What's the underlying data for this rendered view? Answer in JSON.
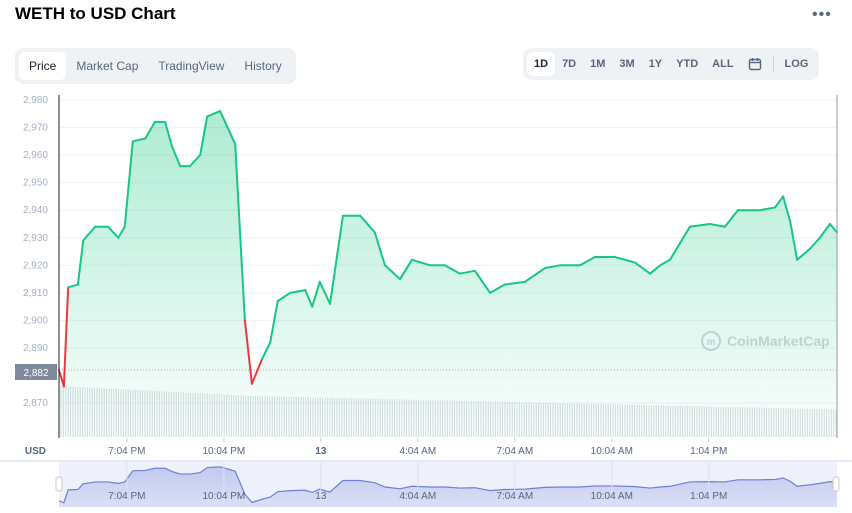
{
  "header": {
    "title": "WETH to USD Chart",
    "more_icon": "ellipsis-icon"
  },
  "tabs": [
    {
      "label": "Price",
      "active": true
    },
    {
      "label": "Market Cap"
    },
    {
      "label": "TradingView"
    },
    {
      "label": "History"
    }
  ],
  "ranges": [
    {
      "label": "1D",
      "active": true
    },
    {
      "label": "7D"
    },
    {
      "label": "1M"
    },
    {
      "label": "3M"
    },
    {
      "label": "1Y"
    },
    {
      "label": "YTD"
    },
    {
      "label": "ALL"
    }
  ],
  "calendar_icon": "calendar-icon",
  "log_label": "LOG",
  "watermark": "CoinMarketCap",
  "colors": {
    "up": "#16c784",
    "down": "#ea3943",
    "navigator": "#6f7fd6"
  },
  "chart_data": {
    "type": "area",
    "ylabel": "USD",
    "ylim": [
      2865,
      2981
    ],
    "yticks": [
      "2,980",
      "2,970",
      "2,960",
      "2,950",
      "2,940",
      "2,930",
      "2,920",
      "2,910",
      "2,900",
      "2,890",
      "2,870"
    ],
    "ytick_values": [
      2980,
      2970,
      2960,
      2950,
      2940,
      2930,
      2920,
      2910,
      2900,
      2890,
      2870
    ],
    "current_price_label": "2,882",
    "reference_price": 2882,
    "xticks": [
      "7:04 PM",
      "10:04 PM",
      "13",
      "4:04 AM",
      "7:04 AM",
      "10:04 AM",
      "1:04 PM"
    ],
    "xtick_times": [
      "12 19:04",
      "12 22:04",
      "13 01:04",
      "13 04:04",
      "13 07:04",
      "13 10:04",
      "13 13:04"
    ],
    "xlim": [
      "12 16:58",
      "13 17:02"
    ],
    "grid": true,
    "points": [
      [
        "12 16:58",
        2882
      ],
      [
        "12 17:04",
        2878
      ],
      [
        "12 17:07",
        2876
      ],
      [
        "12 17:15",
        2912
      ],
      [
        "12 17:33",
        2913
      ],
      [
        "12 17:43",
        2929
      ],
      [
        "12 18:05",
        2934
      ],
      [
        "12 18:29",
        2934
      ],
      [
        "12 18:48",
        2930
      ],
      [
        "12 19:00",
        2934
      ],
      [
        "12 19:15",
        2965
      ],
      [
        "12 19:38",
        2966
      ],
      [
        "12 19:56",
        2972
      ],
      [
        "12 20:15",
        2972
      ],
      [
        "12 20:28",
        2963
      ],
      [
        "12 20:43",
        2956
      ],
      [
        "12 21:01",
        2956
      ],
      [
        "12 21:20",
        2960
      ],
      [
        "12 21:33",
        2974
      ],
      [
        "12 21:57",
        2976
      ],
      [
        "12 22:25",
        2964
      ],
      [
        "12 22:43",
        2900
      ],
      [
        "12 22:56",
        2877
      ],
      [
        "12 23:15",
        2886
      ],
      [
        "12 23:30",
        2892
      ],
      [
        "12 23:44",
        2907
      ],
      [
        "13 00:07",
        2910
      ],
      [
        "13 00:35",
        2911
      ],
      [
        "13 00:48",
        2905
      ],
      [
        "13 01:02",
        2914
      ],
      [
        "13 01:21",
        2906
      ],
      [
        "13 01:45",
        2938
      ],
      [
        "13 02:17",
        2938
      ],
      [
        "13 02:44",
        2932
      ],
      [
        "13 03:03",
        2920
      ],
      [
        "13 03:31",
        2915
      ],
      [
        "13 03:53",
        2922
      ],
      [
        "13 04:27",
        2920
      ],
      [
        "13 04:54",
        2920
      ],
      [
        "13 05:22",
        2917
      ],
      [
        "13 05:50",
        2918
      ],
      [
        "13 06:18",
        2910
      ],
      [
        "13 06:45",
        2913
      ],
      [
        "13 07:23",
        2914
      ],
      [
        "13 08:00",
        2919
      ],
      [
        "13 08:28",
        2920
      ],
      [
        "13 09:05",
        2920
      ],
      [
        "13 09:33",
        2923
      ],
      [
        "13 10:10",
        2923
      ],
      [
        "13 10:47",
        2921
      ],
      [
        "13 11:15",
        2917
      ],
      [
        "13 11:34",
        2920
      ],
      [
        "13 11:52",
        2922
      ],
      [
        "13 12:29",
        2934
      ],
      [
        "13 13:06",
        2935
      ],
      [
        "13 13:34",
        2934
      ],
      [
        "13 13:58",
        2940
      ],
      [
        "13 14:39",
        2940
      ],
      [
        "13 15:07",
        2941
      ],
      [
        "13 15:22",
        2945
      ],
      [
        "13 15:35",
        2936
      ],
      [
        "13 15:48",
        2922
      ],
      [
        "13 16:12",
        2926
      ],
      [
        "13 16:30",
        2930
      ],
      [
        "13 16:49",
        2935
      ],
      [
        "13 17:02",
        2932
      ]
    ]
  }
}
